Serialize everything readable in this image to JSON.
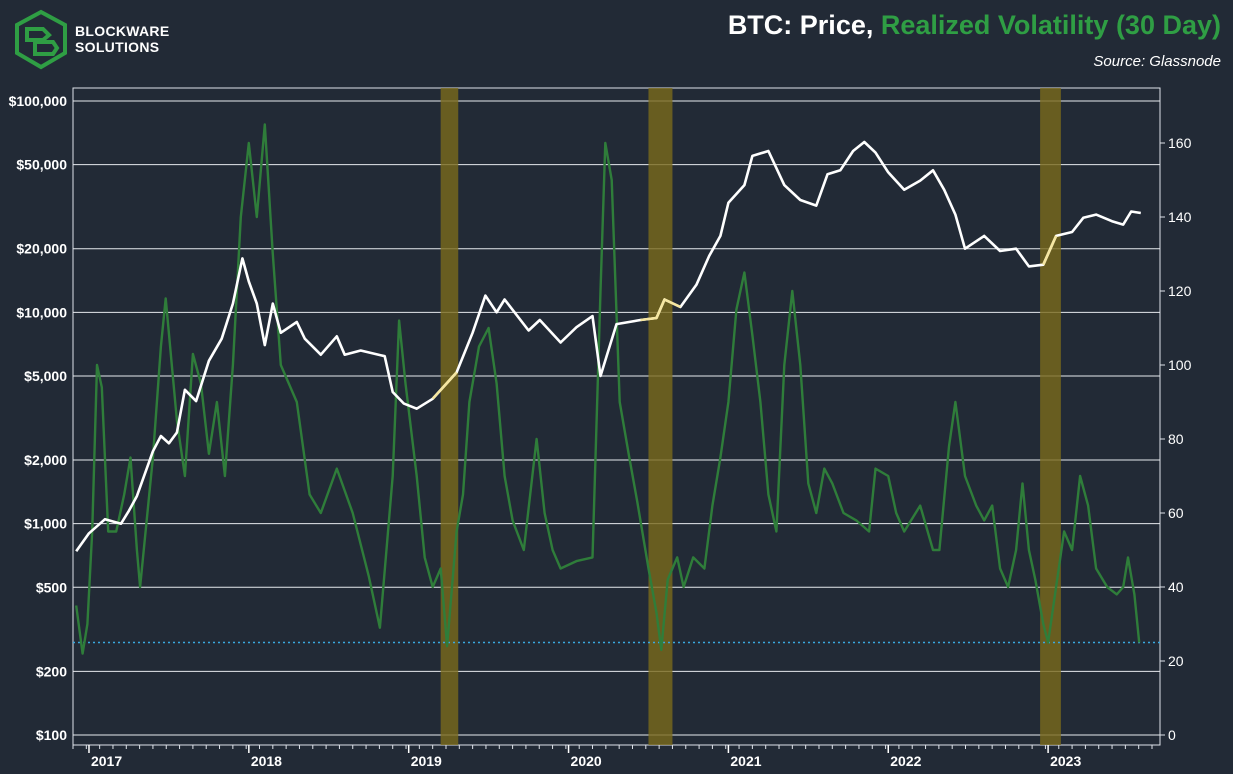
{
  "brand": {
    "line1": "BLOCKWARE",
    "line2": "SOLUTIONS"
  },
  "title": {
    "part1": "BTC: Price,",
    "part2": "Realized Volatility (30 Day)"
  },
  "source": "Source: Glassnode",
  "colors": {
    "background": "#222a36",
    "price": "#ffffff",
    "volatility": "#2f7d3a",
    "highlight": "#7a6a1c",
    "threshold": "#3aa9e0",
    "price_in_band": "#f5e6a0"
  },
  "chart_data": {
    "type": "line",
    "title": "BTC: Price, Realized Volatility (30 Day)",
    "x_ticks": [
      "2017",
      "2018",
      "2019",
      "2020",
      "2021",
      "2022",
      "2023"
    ],
    "y_left": {
      "scale": "log",
      "label": "",
      "ticks": [
        "$100,000",
        "$50,000",
        "$20,000",
        "$10,000",
        "$5,000",
        "$2,000",
        "$1,000",
        "$500",
        "$200",
        "$100"
      ],
      "tick_values": [
        100000,
        50000,
        20000,
        10000,
        5000,
        2000,
        1000,
        500,
        200,
        100
      ]
    },
    "y_right": {
      "scale": "linear",
      "label": "",
      "ticks": [
        "160",
        "140",
        "120",
        "100",
        "80",
        "60",
        "40",
        "20",
        "0"
      ],
      "tick_values": [
        160,
        140,
        120,
        100,
        80,
        60,
        40,
        20,
        0
      ]
    },
    "grid": true,
    "highlight_periods": [
      {
        "start": "2019.20",
        "end": "2019.31"
      },
      {
        "start": "2020.50",
        "end": "2020.65"
      },
      {
        "start": "2022.95",
        "end": "2023.08"
      }
    ],
    "threshold_line": {
      "value": 25,
      "style": "dotted"
    },
    "series": [
      {
        "name": "BTC: Price",
        "axis": "left",
        "points": [
          [
            2016.92,
            740
          ],
          [
            2017.0,
            900
          ],
          [
            2017.1,
            1050
          ],
          [
            2017.2,
            1000
          ],
          [
            2017.25,
            1150
          ],
          [
            2017.3,
            1350
          ],
          [
            2017.4,
            2200
          ],
          [
            2017.45,
            2600
          ],
          [
            2017.5,
            2400
          ],
          [
            2017.55,
            2700
          ],
          [
            2017.6,
            4300
          ],
          [
            2017.67,
            3800
          ],
          [
            2017.75,
            5900
          ],
          [
            2017.83,
            7500
          ],
          [
            2017.9,
            11000
          ],
          [
            2017.96,
            18000
          ],
          [
            2018.0,
            14000
          ],
          [
            2018.05,
            11000
          ],
          [
            2018.1,
            7000
          ],
          [
            2018.15,
            11000
          ],
          [
            2018.2,
            8000
          ],
          [
            2018.3,
            9000
          ],
          [
            2018.35,
            7500
          ],
          [
            2018.45,
            6300
          ],
          [
            2018.55,
            7700
          ],
          [
            2018.6,
            6300
          ],
          [
            2018.7,
            6600
          ],
          [
            2018.85,
            6200
          ],
          [
            2018.9,
            4200
          ],
          [
            2018.97,
            3700
          ],
          [
            2019.05,
            3500
          ],
          [
            2019.15,
            3900
          ],
          [
            2019.3,
            5200
          ],
          [
            2019.4,
            8000
          ],
          [
            2019.48,
            12000
          ],
          [
            2019.55,
            10000
          ],
          [
            2019.6,
            11500
          ],
          [
            2019.75,
            8200
          ],
          [
            2019.82,
            9200
          ],
          [
            2019.95,
            7200
          ],
          [
            2020.05,
            8500
          ],
          [
            2020.15,
            9600
          ],
          [
            2020.2,
            5000
          ],
          [
            2020.3,
            8800
          ],
          [
            2020.45,
            9200
          ],
          [
            2020.55,
            9400
          ],
          [
            2020.6,
            11500
          ],
          [
            2020.7,
            10600
          ],
          [
            2020.8,
            13500
          ],
          [
            2020.88,
            18500
          ],
          [
            2020.95,
            23000
          ],
          [
            2021.0,
            33000
          ],
          [
            2021.1,
            40000
          ],
          [
            2021.15,
            55000
          ],
          [
            2021.25,
            58000
          ],
          [
            2021.35,
            40000
          ],
          [
            2021.45,
            34000
          ],
          [
            2021.55,
            32000
          ],
          [
            2021.62,
            45000
          ],
          [
            2021.7,
            47000
          ],
          [
            2021.78,
            58000
          ],
          [
            2021.85,
            64000
          ],
          [
            2021.92,
            57000
          ],
          [
            2022.0,
            46000
          ],
          [
            2022.1,
            38000
          ],
          [
            2022.2,
            42000
          ],
          [
            2022.28,
            47000
          ],
          [
            2022.35,
            38000
          ],
          [
            2022.42,
            29000
          ],
          [
            2022.48,
            20000
          ],
          [
            2022.6,
            23000
          ],
          [
            2022.7,
            19500
          ],
          [
            2022.8,
            20000
          ],
          [
            2022.88,
            16500
          ],
          [
            2022.97,
            16800
          ],
          [
            2023.05,
            23000
          ],
          [
            2023.15,
            24000
          ],
          [
            2023.22,
            28000
          ],
          [
            2023.3,
            29000
          ],
          [
            2023.4,
            27000
          ],
          [
            2023.47,
            26000
          ],
          [
            2023.52,
            30000
          ],
          [
            2023.58,
            29500
          ]
        ]
      },
      {
        "name": "Realized Volatility (30 Day)",
        "axis": "right",
        "points": [
          [
            2016.92,
            35
          ],
          [
            2016.96,
            22
          ],
          [
            2016.99,
            30
          ],
          [
            2017.02,
            55
          ],
          [
            2017.05,
            100
          ],
          [
            2017.08,
            94
          ],
          [
            2017.12,
            55
          ],
          [
            2017.17,
            55
          ],
          [
            2017.22,
            65
          ],
          [
            2017.26,
            75
          ],
          [
            2017.3,
            50
          ],
          [
            2017.32,
            40
          ],
          [
            2017.4,
            75
          ],
          [
            2017.45,
            105
          ],
          [
            2017.48,
            118
          ],
          [
            2017.55,
            85
          ],
          [
            2017.6,
            70
          ],
          [
            2017.65,
            103
          ],
          [
            2017.7,
            95
          ],
          [
            2017.75,
            76
          ],
          [
            2017.8,
            90
          ],
          [
            2017.85,
            70
          ],
          [
            2017.9,
            100
          ],
          [
            2017.95,
            140
          ],
          [
            2018.0,
            160
          ],
          [
            2018.05,
            140
          ],
          [
            2018.1,
            165
          ],
          [
            2018.15,
            130
          ],
          [
            2018.2,
            100
          ],
          [
            2018.3,
            90
          ],
          [
            2018.38,
            65
          ],
          [
            2018.45,
            60
          ],
          [
            2018.55,
            72
          ],
          [
            2018.65,
            60
          ],
          [
            2018.75,
            43
          ],
          [
            2018.82,
            29
          ],
          [
            2018.9,
            70
          ],
          [
            2018.94,
            112
          ],
          [
            2018.98,
            95
          ],
          [
            2019.05,
            70
          ],
          [
            2019.1,
            48
          ],
          [
            2019.15,
            40
          ],
          [
            2019.2,
            45
          ],
          [
            2019.24,
            24
          ],
          [
            2019.3,
            55
          ],
          [
            2019.34,
            65
          ],
          [
            2019.38,
            90
          ],
          [
            2019.44,
            105
          ],
          [
            2019.5,
            110
          ],
          [
            2019.55,
            95
          ],
          [
            2019.6,
            70
          ],
          [
            2019.65,
            58
          ],
          [
            2019.72,
            50
          ],
          [
            2019.8,
            80
          ],
          [
            2019.85,
            60
          ],
          [
            2019.9,
            50
          ],
          [
            2019.95,
            45
          ],
          [
            2020.05,
            47
          ],
          [
            2020.15,
            48
          ],
          [
            2020.2,
            120
          ],
          [
            2020.23,
            160
          ],
          [
            2020.27,
            150
          ],
          [
            2020.32,
            90
          ],
          [
            2020.38,
            75
          ],
          [
            2020.43,
            63
          ],
          [
            2020.5,
            45
          ],
          [
            2020.55,
            33
          ],
          [
            2020.58,
            23
          ],
          [
            2020.62,
            42
          ],
          [
            2020.68,
            48
          ],
          [
            2020.72,
            40
          ],
          [
            2020.78,
            48
          ],
          [
            2020.85,
            45
          ],
          [
            2020.9,
            62
          ],
          [
            2020.95,
            75
          ],
          [
            2021.0,
            90
          ],
          [
            2021.05,
            115
          ],
          [
            2021.1,
            125
          ],
          [
            2021.15,
            108
          ],
          [
            2021.2,
            90
          ],
          [
            2021.25,
            65
          ],
          [
            2021.3,
            55
          ],
          [
            2021.35,
            100
          ],
          [
            2021.4,
            120
          ],
          [
            2021.45,
            100
          ],
          [
            2021.5,
            68
          ],
          [
            2021.55,
            60
          ],
          [
            2021.6,
            72
          ],
          [
            2021.65,
            68
          ],
          [
            2021.72,
            60
          ],
          [
            2021.8,
            58
          ],
          [
            2021.88,
            55
          ],
          [
            2021.92,
            72
          ],
          [
            2022.0,
            70
          ],
          [
            2022.05,
            60
          ],
          [
            2022.1,
            55
          ],
          [
            2022.2,
            62
          ],
          [
            2022.28,
            50
          ],
          [
            2022.32,
            50
          ],
          [
            2022.38,
            78
          ],
          [
            2022.42,
            90
          ],
          [
            2022.48,
            70
          ],
          [
            2022.55,
            62
          ],
          [
            2022.6,
            58
          ],
          [
            2022.65,
            62
          ],
          [
            2022.7,
            45
          ],
          [
            2022.75,
            40
          ],
          [
            2022.8,
            50
          ],
          [
            2022.84,
            68
          ],
          [
            2022.88,
            50
          ],
          [
            2022.92,
            42
          ],
          [
            2022.97,
            30
          ],
          [
            2023.0,
            25
          ],
          [
            2023.05,
            40
          ],
          [
            2023.1,
            55
          ],
          [
            2023.15,
            50
          ],
          [
            2023.2,
            70
          ],
          [
            2023.25,
            62
          ],
          [
            2023.3,
            45
          ],
          [
            2023.37,
            40
          ],
          [
            2023.43,
            38
          ],
          [
            2023.47,
            40
          ],
          [
            2023.5,
            48
          ],
          [
            2023.54,
            38
          ],
          [
            2023.57,
            25
          ]
        ]
      }
    ]
  }
}
